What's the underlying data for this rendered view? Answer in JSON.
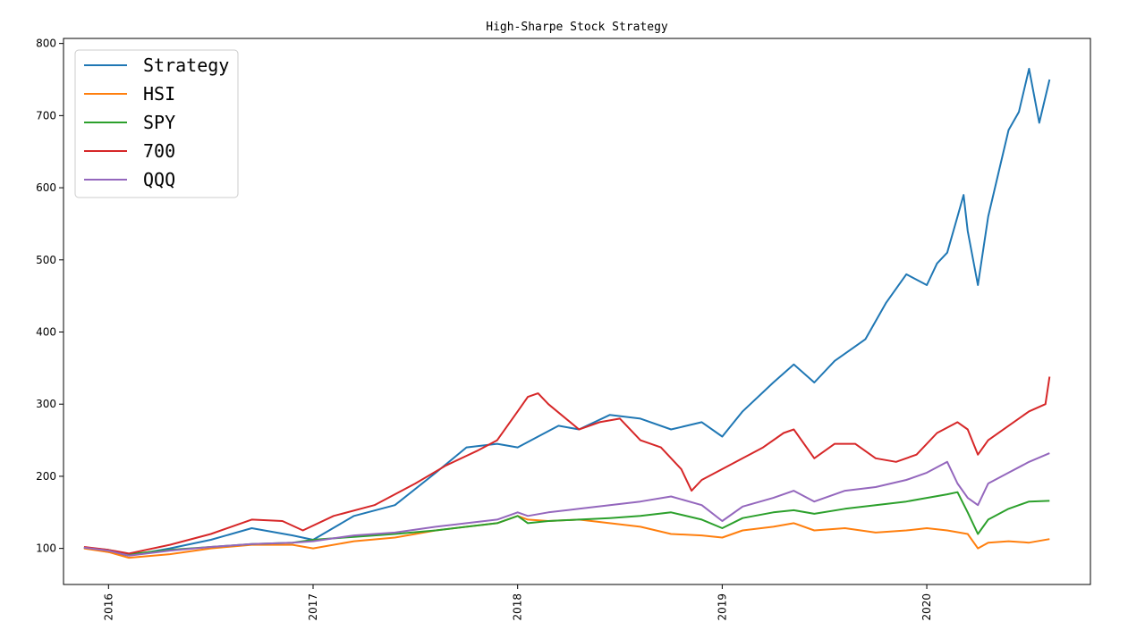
{
  "chart_data": {
    "type": "line",
    "title": "High-Sharpe Stock Strategy",
    "xlabel": "",
    "ylabel": "",
    "x_ticks": [
      "2016",
      "2017",
      "2018",
      "2019",
      "2020"
    ],
    "y_ticks": [
      100,
      200,
      300,
      400,
      500,
      600,
      700,
      800
    ],
    "xlim": [
      2015.78,
      2020.8
    ],
    "ylim": [
      50,
      807
    ],
    "grid": false,
    "legend_position": "top-left",
    "series": [
      {
        "name": "Strategy",
        "color": "#1f77b4",
        "x": [
          2015.88,
          2016.0,
          2016.1,
          2016.3,
          2016.5,
          2016.7,
          2016.9,
          2017.0,
          2017.2,
          2017.4,
          2017.6,
          2017.75,
          2017.9,
          2018.0,
          2018.1,
          2018.2,
          2018.3,
          2018.45,
          2018.6,
          2018.75,
          2018.9,
          2019.0,
          2019.1,
          2019.25,
          2019.35,
          2019.45,
          2019.55,
          2019.7,
          2019.8,
          2019.9,
          2020.0,
          2020.05,
          2020.1,
          2020.15,
          2020.18,
          2020.2,
          2020.25,
          2020.3,
          2020.35,
          2020.4,
          2020.45,
          2020.5,
          2020.55,
          2020.6
        ],
        "y": [
          101,
          95,
          90,
          100,
          112,
          128,
          118,
          112,
          145,
          160,
          205,
          240,
          245,
          240,
          255,
          270,
          265,
          285,
          280,
          265,
          275,
          255,
          290,
          330,
          355,
          330,
          360,
          390,
          440,
          480,
          465,
          495,
          510,
          560,
          590,
          540,
          465,
          560,
          620,
          680,
          705,
          765,
          690,
          750
        ]
      },
      {
        "name": "HSI",
        "color": "#ff7f0e",
        "x": [
          2015.88,
          2016.0,
          2016.1,
          2016.3,
          2016.5,
          2016.7,
          2016.9,
          2017.0,
          2017.2,
          2017.4,
          2017.6,
          2017.75,
          2017.9,
          2018.0,
          2018.05,
          2018.15,
          2018.3,
          2018.45,
          2018.6,
          2018.75,
          2018.9,
          2019.0,
          2019.1,
          2019.25,
          2019.35,
          2019.45,
          2019.6,
          2019.75,
          2019.9,
          2020.0,
          2020.1,
          2020.2,
          2020.25,
          2020.3,
          2020.4,
          2020.5,
          2020.6
        ],
        "y": [
          100,
          95,
          87,
          92,
          100,
          105,
          105,
          100,
          110,
          115,
          125,
          130,
          135,
          145,
          140,
          138,
          140,
          135,
          130,
          120,
          118,
          115,
          125,
          130,
          135,
          125,
          128,
          122,
          125,
          128,
          125,
          120,
          100,
          108,
          110,
          108,
          113
        ]
      },
      {
        "name": "SPY",
        "color": "#2ca02c",
        "x": [
          2015.88,
          2016.0,
          2016.1,
          2016.3,
          2016.5,
          2016.7,
          2016.9,
          2017.0,
          2017.2,
          2017.4,
          2017.6,
          2017.75,
          2017.9,
          2018.0,
          2018.05,
          2018.15,
          2018.3,
          2018.45,
          2018.6,
          2018.75,
          2018.9,
          2019.0,
          2019.1,
          2019.25,
          2019.35,
          2019.45,
          2019.6,
          2019.75,
          2019.9,
          2020.0,
          2020.1,
          2020.15,
          2020.2,
          2020.25,
          2020.3,
          2020.4,
          2020.5,
          2020.6
        ],
        "y": [
          101,
          98,
          92,
          98,
          102,
          106,
          108,
          112,
          116,
          120,
          125,
          130,
          135,
          145,
          135,
          138,
          140,
          142,
          145,
          150,
          140,
          128,
          142,
          150,
          153,
          148,
          155,
          160,
          165,
          170,
          175,
          178,
          150,
          120,
          140,
          155,
          165,
          166
        ]
      },
      {
        "name": "700",
        "color": "#d62728",
        "x": [
          2015.88,
          2016.0,
          2016.1,
          2016.3,
          2016.5,
          2016.7,
          2016.85,
          2016.95,
          2017.1,
          2017.3,
          2017.5,
          2017.65,
          2017.8,
          2017.9,
          2018.0,
          2018.05,
          2018.1,
          2018.15,
          2018.3,
          2018.4,
          2018.5,
          2018.6,
          2018.7,
          2018.8,
          2018.85,
          2018.9,
          2019.0,
          2019.1,
          2019.2,
          2019.3,
          2019.35,
          2019.45,
          2019.55,
          2019.65,
          2019.75,
          2019.85,
          2019.95,
          2020.05,
          2020.15,
          2020.2,
          2020.25,
          2020.3,
          2020.4,
          2020.5,
          2020.58,
          2020.6
        ],
        "y": [
          102,
          98,
          93,
          105,
          120,
          140,
          138,
          125,
          145,
          160,
          190,
          215,
          235,
          250,
          290,
          310,
          315,
          300,
          265,
          275,
          280,
          250,
          240,
          210,
          180,
          195,
          210,
          225,
          240,
          260,
          265,
          225,
          245,
          245,
          225,
          220,
          230,
          260,
          275,
          265,
          230,
          250,
          270,
          290,
          300,
          338
        ]
      },
      {
        "name": "QQQ",
        "color": "#9467bd",
        "x": [
          2015.88,
          2016.0,
          2016.1,
          2016.3,
          2016.5,
          2016.7,
          2016.9,
          2017.0,
          2017.2,
          2017.4,
          2017.6,
          2017.75,
          2017.9,
          2018.0,
          2018.05,
          2018.15,
          2018.3,
          2018.45,
          2018.6,
          2018.75,
          2018.9,
          2019.0,
          2019.1,
          2019.25,
          2019.35,
          2019.45,
          2019.6,
          2019.75,
          2019.9,
          2020.0,
          2020.1,
          2020.15,
          2020.2,
          2020.25,
          2020.3,
          2020.4,
          2020.5,
          2020.6
        ],
        "y": [
          101,
          97,
          90,
          97,
          102,
          106,
          108,
          110,
          118,
          122,
          130,
          135,
          140,
          150,
          145,
          150,
          155,
          160,
          165,
          172,
          160,
          138,
          158,
          170,
          180,
          165,
          180,
          185,
          195,
          205,
          220,
          190,
          170,
          160,
          190,
          205,
          220,
          232
        ]
      }
    ]
  }
}
